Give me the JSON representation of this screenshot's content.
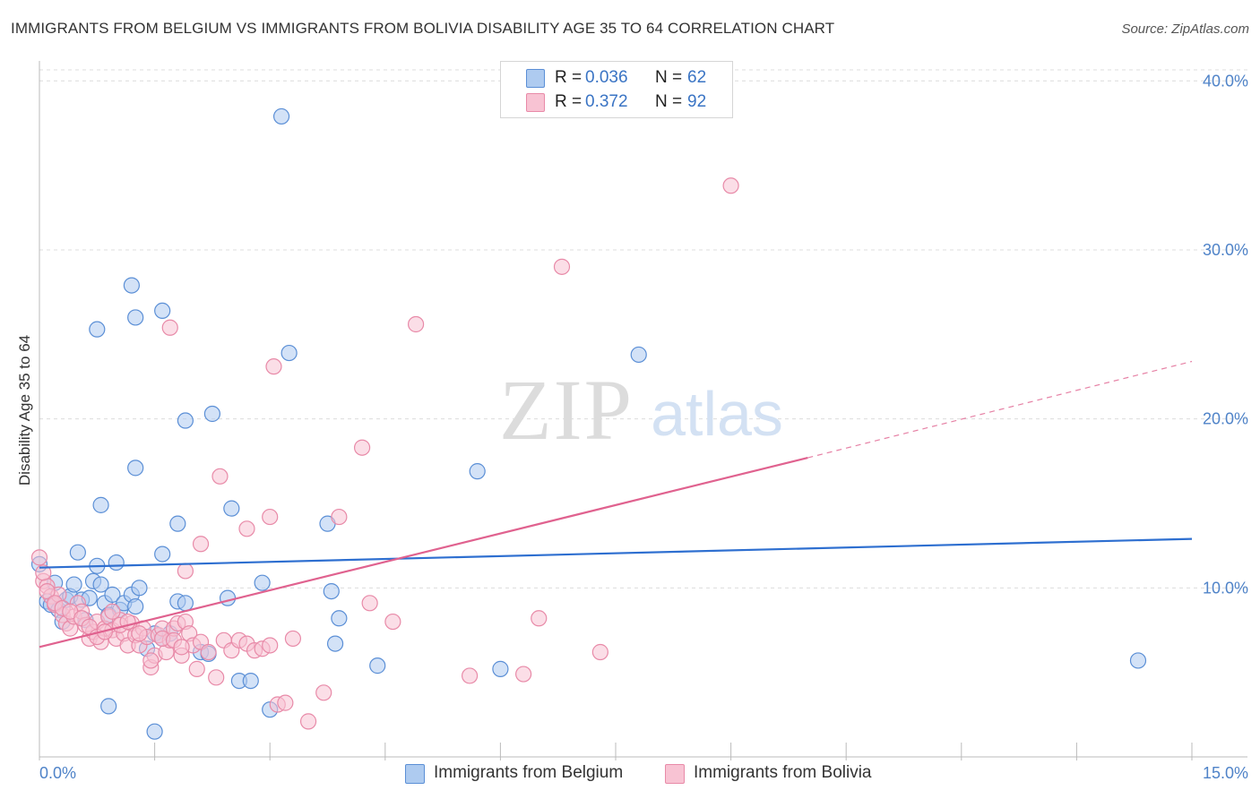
{
  "title": "IMMIGRANTS FROM BELGIUM VS IMMIGRANTS FROM BOLIVIA DISABILITY AGE 35 TO 64 CORRELATION CHART",
  "source": "Source: ZipAtlas.com",
  "watermark": {
    "zip": "ZIP",
    "atlas": "atlas"
  },
  "colors": {
    "belgium_fill": "#aecbf0",
    "belgium_stroke": "#5b8fd6",
    "belgium_line": "#2e6fd0",
    "bolivia_fill": "#f8c3d3",
    "bolivia_stroke": "#e88aa8",
    "bolivia_line": "#e0628f",
    "tick_text": "#4f83c8",
    "grid": "#dcdcdc"
  },
  "legend": {
    "rows": [
      {
        "r_label": "R =",
        "r_value": "0.036",
        "n_label": "N =",
        "n_value": "62"
      },
      {
        "r_label": "R =",
        "r_value": "0.372",
        "n_label": "N =",
        "n_value": "92"
      }
    ]
  },
  "bottom_legend": [
    "Immigrants from Belgium",
    "Immigrants from Bolivia"
  ],
  "chart_data": {
    "type": "scatter",
    "title": "IMMIGRANTS FROM BELGIUM VS IMMIGRANTS FROM BOLIVIA DISABILITY AGE 35 TO 64 CORRELATION CHART",
    "xlabel": "",
    "ylabel": "Disability Age 35 to 64",
    "xlim": [
      0,
      15
    ],
    "ylim": [
      0,
      41.5
    ],
    "x_tick_labels": [
      {
        "value": 0,
        "label": "0.0%"
      },
      {
        "value": 15,
        "label": "15.0%"
      }
    ],
    "y_tick_labels": [
      {
        "value": 10,
        "label": "10.0%"
      },
      {
        "value": 20,
        "label": "20.0%"
      },
      {
        "value": 30,
        "label": "30.0%"
      },
      {
        "value": 40,
        "label": "40.0%"
      }
    ],
    "x_minor_ticks": [
      0,
      1.5,
      3,
      4.5,
      6,
      7.5,
      9,
      10.5,
      12,
      13.5,
      15
    ],
    "grid": true,
    "legend_position": "top-center",
    "series": [
      {
        "name": "Immigrants from Belgium",
        "points": [
          [
            0.0,
            11.4
          ],
          [
            0.1,
            9.2
          ],
          [
            0.15,
            9.0
          ],
          [
            0.2,
            10.3
          ],
          [
            0.25,
            8.7
          ],
          [
            0.3,
            8.0
          ],
          [
            0.35,
            9.3
          ],
          [
            0.4,
            9.5
          ],
          [
            0.45,
            10.2
          ],
          [
            0.5,
            12.1
          ],
          [
            0.55,
            9.3
          ],
          [
            0.6,
            8.1
          ],
          [
            0.65,
            9.4
          ],
          [
            0.7,
            10.4
          ],
          [
            0.75,
            11.3
          ],
          [
            0.8,
            10.2
          ],
          [
            0.85,
            9.1
          ],
          [
            0.9,
            8.4
          ],
          [
            0.95,
            9.6
          ],
          [
            1.0,
            11.5
          ],
          [
            1.05,
            8.7
          ],
          [
            1.1,
            9.1
          ],
          [
            1.2,
            9.6
          ],
          [
            1.25,
            8.9
          ],
          [
            1.3,
            10.0
          ],
          [
            1.4,
            6.4
          ],
          [
            1.5,
            7.3
          ],
          [
            1.6,
            7.0
          ],
          [
            1.7,
            7.3
          ],
          [
            1.8,
            9.2
          ],
          [
            1.9,
            9.1
          ],
          [
            2.1,
            6.2
          ],
          [
            2.2,
            6.1
          ],
          [
            0.75,
            25.3
          ],
          [
            0.8,
            14.9
          ],
          [
            0.9,
            3.0
          ],
          [
            1.2,
            27.9
          ],
          [
            1.25,
            26.0
          ],
          [
            1.25,
            17.1
          ],
          [
            1.6,
            26.4
          ],
          [
            1.5,
            1.5
          ],
          [
            1.6,
            12.0
          ],
          [
            1.8,
            13.8
          ],
          [
            1.9,
            19.9
          ],
          [
            2.25,
            20.3
          ],
          [
            2.5,
            14.7
          ],
          [
            2.45,
            9.4
          ],
          [
            2.6,
            4.5
          ],
          [
            2.75,
            4.5
          ],
          [
            2.9,
            10.3
          ],
          [
            3.0,
            2.8
          ],
          [
            3.15,
            37.9
          ],
          [
            3.25,
            23.9
          ],
          [
            3.75,
            13.8
          ],
          [
            3.8,
            9.8
          ],
          [
            3.85,
            6.7
          ],
          [
            3.9,
            8.2
          ],
          [
            4.4,
            5.4
          ],
          [
            5.7,
            16.9
          ],
          [
            6.0,
            5.2
          ],
          [
            7.8,
            23.8
          ],
          [
            14.3,
            5.7
          ]
        ]
      },
      {
        "name": "Immigrants from Bolivia",
        "points": [
          [
            0.0,
            11.8
          ],
          [
            0.05,
            10.4
          ],
          [
            0.1,
            10.1
          ],
          [
            0.15,
            9.5
          ],
          [
            0.2,
            9.0
          ],
          [
            0.25,
            9.6
          ],
          [
            0.3,
            8.4
          ],
          [
            0.35,
            7.9
          ],
          [
            0.4,
            7.6
          ],
          [
            0.45,
            8.3
          ],
          [
            0.5,
            9.1
          ],
          [
            0.55,
            8.6
          ],
          [
            0.6,
            7.8
          ],
          [
            0.65,
            7.0
          ],
          [
            0.7,
            7.4
          ],
          [
            0.75,
            8.0
          ],
          [
            0.8,
            6.8
          ],
          [
            0.85,
            7.6
          ],
          [
            0.9,
            8.3
          ],
          [
            0.95,
            7.5
          ],
          [
            1.0,
            7.0
          ],
          [
            1.05,
            8.1
          ],
          [
            1.1,
            7.3
          ],
          [
            1.15,
            6.6
          ],
          [
            1.2,
            7.9
          ],
          [
            1.25,
            7.2
          ],
          [
            1.3,
            6.6
          ],
          [
            1.35,
            7.6
          ],
          [
            1.4,
            7.1
          ],
          [
            1.45,
            5.3
          ],
          [
            1.5,
            6.0
          ],
          [
            1.55,
            7.2
          ],
          [
            1.6,
            7.6
          ],
          [
            1.65,
            6.2
          ],
          [
            1.7,
            6.9
          ],
          [
            1.75,
            7.6
          ],
          [
            1.8,
            7.9
          ],
          [
            1.85,
            6.0
          ],
          [
            1.9,
            8.0
          ],
          [
            1.95,
            7.3
          ],
          [
            2.0,
            6.6
          ],
          [
            2.05,
            5.2
          ],
          [
            2.1,
            6.8
          ],
          [
            2.2,
            6.2
          ],
          [
            2.3,
            4.7
          ],
          [
            2.4,
            6.9
          ],
          [
            2.5,
            6.3
          ],
          [
            2.6,
            6.9
          ],
          [
            2.7,
            6.7
          ],
          [
            2.8,
            6.3
          ],
          [
            2.9,
            6.4
          ],
          [
            3.0,
            6.6
          ],
          [
            3.1,
            3.1
          ],
          [
            3.2,
            3.2
          ],
          [
            3.3,
            7.0
          ],
          [
            3.5,
            2.1
          ],
          [
            3.7,
            3.8
          ],
          [
            4.3,
            9.1
          ],
          [
            4.6,
            8.0
          ],
          [
            5.6,
            4.8
          ],
          [
            6.3,
            4.9
          ],
          [
            6.5,
            8.2
          ],
          [
            7.3,
            6.2
          ],
          [
            1.7,
            25.4
          ],
          [
            3.05,
            23.1
          ],
          [
            3.9,
            14.2
          ],
          [
            4.2,
            18.3
          ],
          [
            4.9,
            25.6
          ],
          [
            2.35,
            16.6
          ],
          [
            2.7,
            13.5
          ],
          [
            3.0,
            14.2
          ],
          [
            2.1,
            12.6
          ],
          [
            1.9,
            11.0
          ],
          [
            6.8,
            29.0
          ],
          [
            9.0,
            33.8
          ],
          [
            0.05,
            10.9
          ],
          [
            0.1,
            9.8
          ],
          [
            0.2,
            9.1
          ],
          [
            0.3,
            8.8
          ],
          [
            0.4,
            8.6
          ],
          [
            0.55,
            8.2
          ],
          [
            0.65,
            7.7
          ],
          [
            0.75,
            7.1
          ],
          [
            0.85,
            7.4
          ],
          [
            0.95,
            8.6
          ],
          [
            1.05,
            7.8
          ],
          [
            1.15,
            8.0
          ],
          [
            1.3,
            7.3
          ],
          [
            1.45,
            5.7
          ],
          [
            1.6,
            7.0
          ],
          [
            1.75,
            6.9
          ],
          [
            1.85,
            6.5
          ]
        ]
      }
    ],
    "trendlines": [
      {
        "series": "Immigrants from Belgium",
        "x": [
          0,
          15
        ],
        "y": [
          11.2,
          12.9
        ]
      },
      {
        "series": "Immigrants from Bolivia",
        "x": [
          0,
          10
        ],
        "y": [
          6.5,
          17.7
        ],
        "dashed_extension": {
          "x": [
            10,
            15
          ],
          "y": [
            17.7,
            23.4
          ]
        }
      }
    ]
  }
}
